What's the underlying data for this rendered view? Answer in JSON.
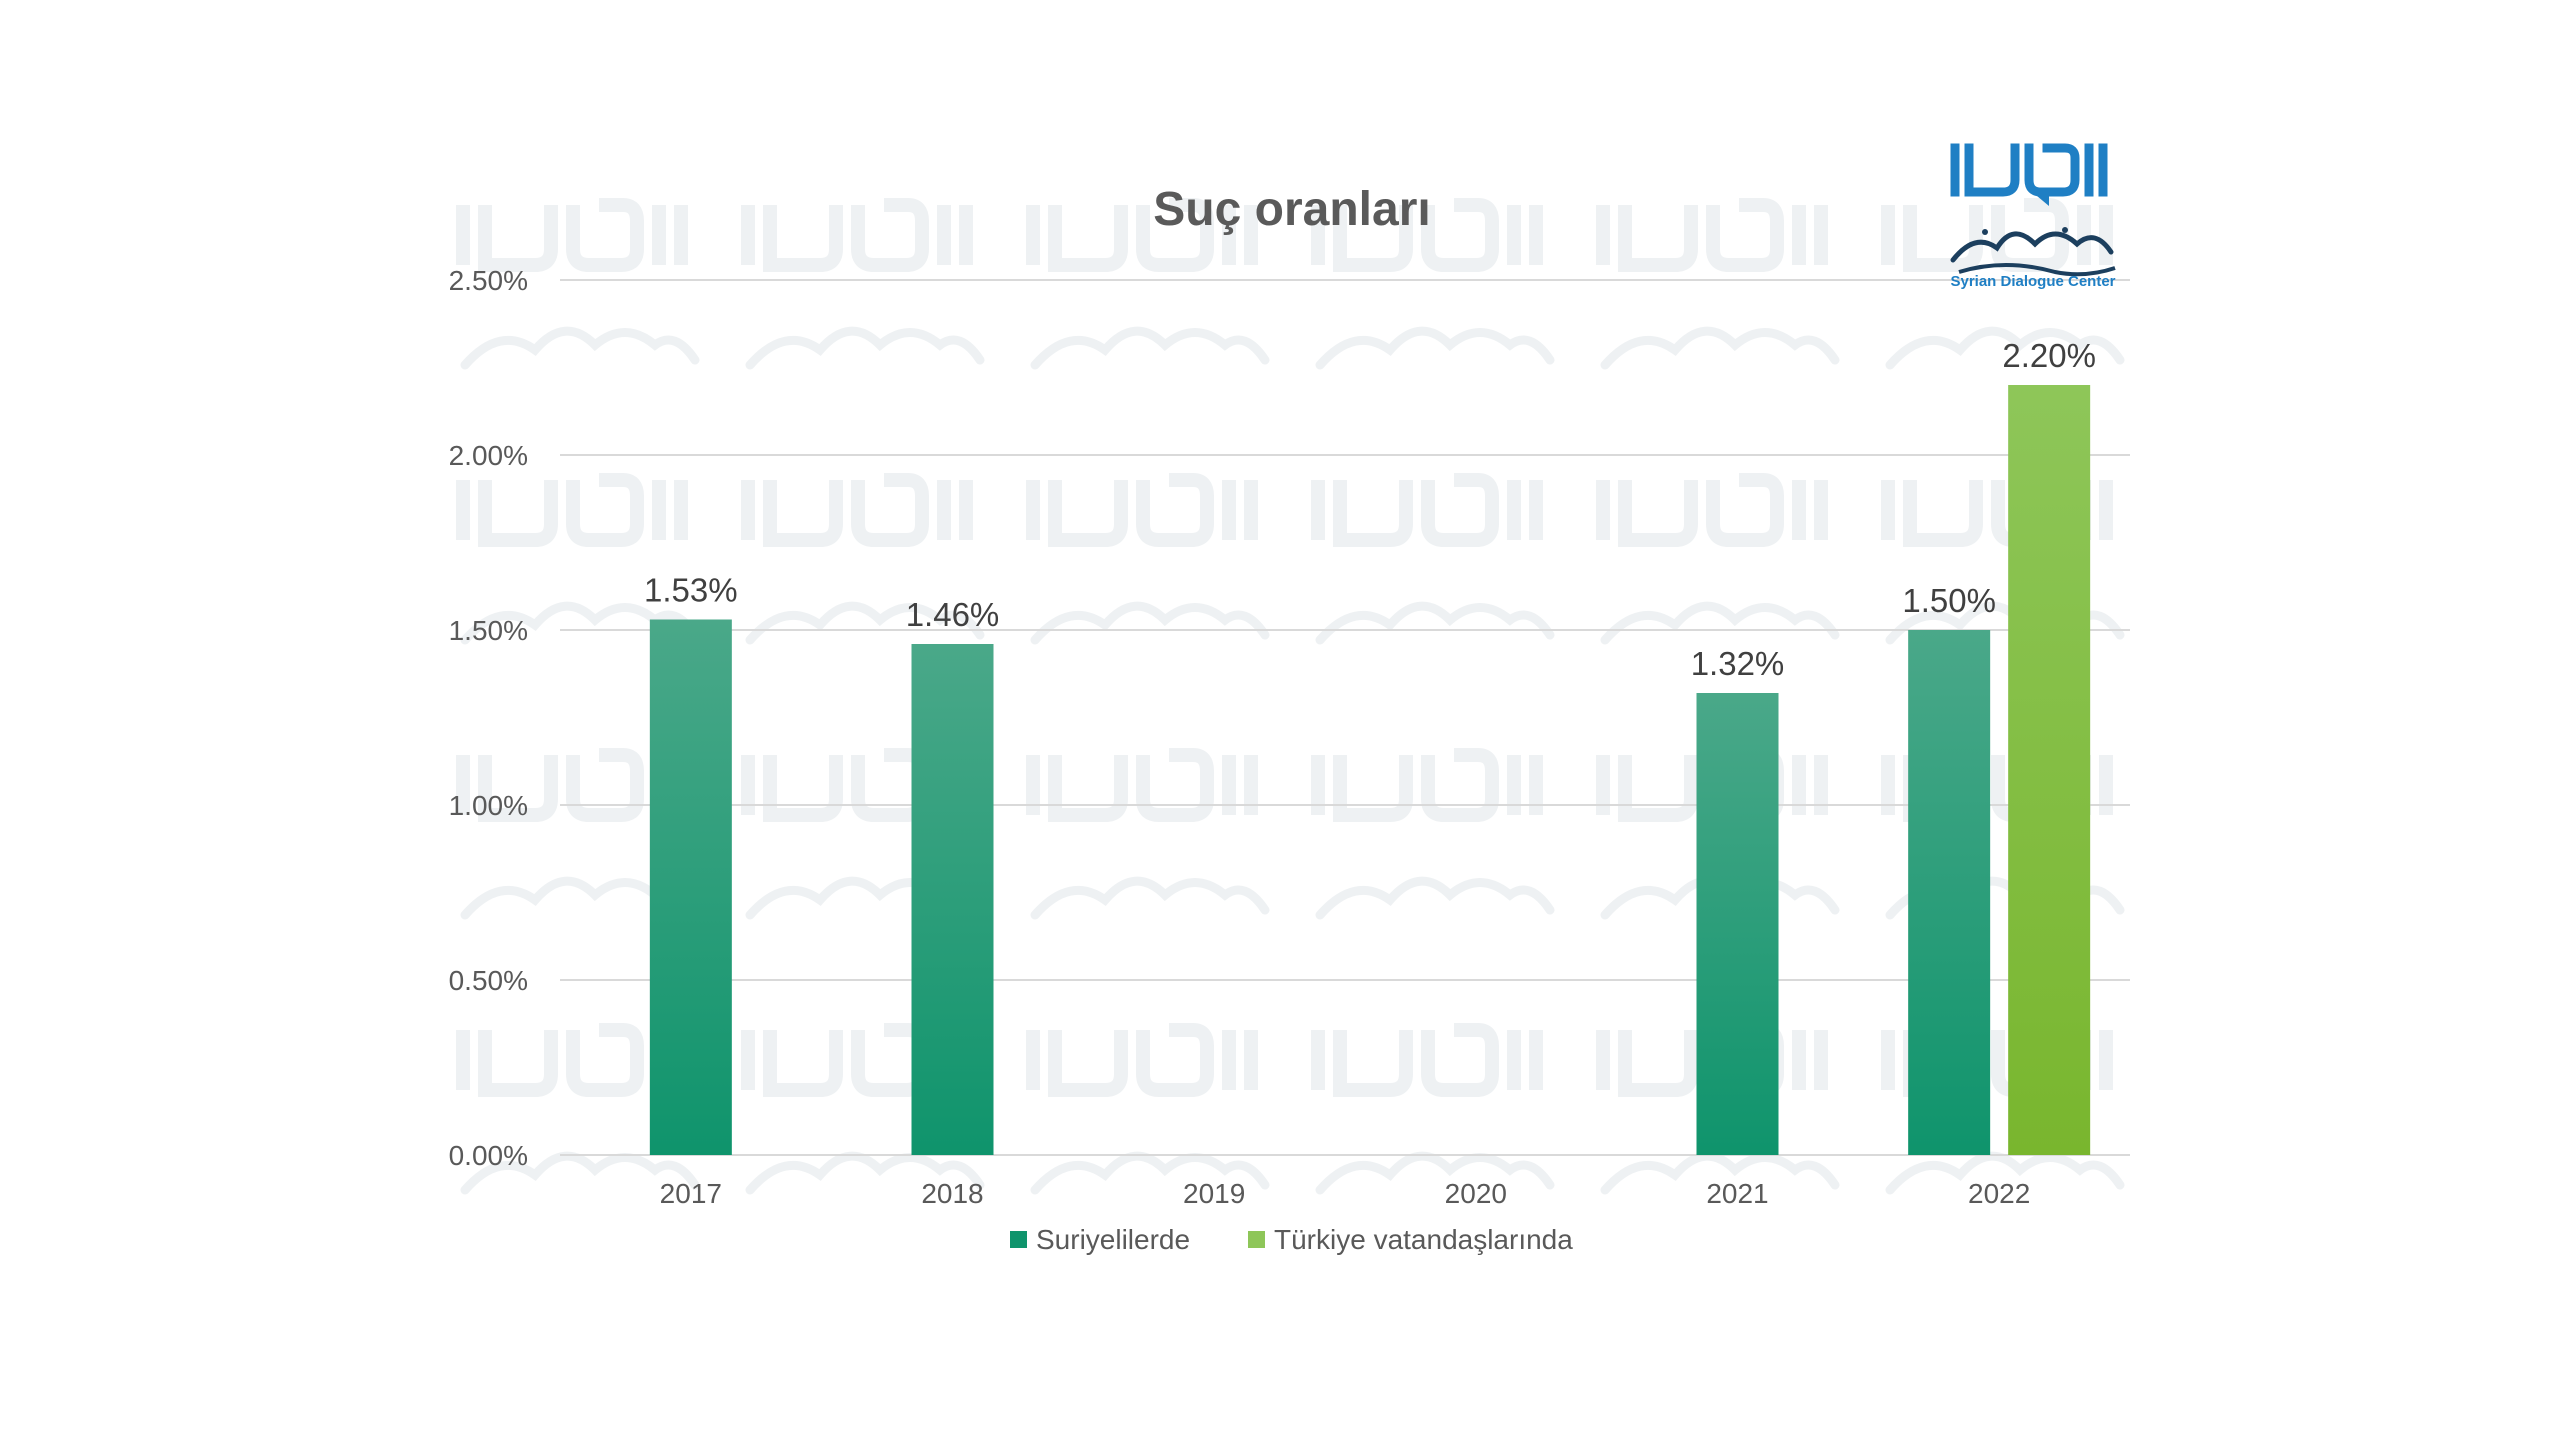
{
  "chart_data": {
    "type": "bar",
    "title": "Suç oranları",
    "categories": [
      "2017",
      "2018",
      "2019",
      "2020",
      "2021",
      "2022"
    ],
    "series": [
      {
        "name": "Suriyelilerde",
        "values": [
          1.53,
          1.46,
          null,
          null,
          1.32,
          1.5
        ],
        "labels": [
          "1.53%",
          "1.46%",
          "",
          "",
          "1.32%",
          "1.50%"
        ],
        "color_top": "#4aa889",
        "color_bottom": "#0f946c"
      },
      {
        "name": "Türkiye vatandaşlarında",
        "values": [
          null,
          null,
          null,
          null,
          null,
          2.2
        ],
        "labels": [
          "",
          "",
          "",
          "",
          "",
          "2.20%"
        ],
        "color_top": "#8ec659",
        "color_bottom": "#79b62e"
      }
    ],
    "ylim": [
      0,
      2.5
    ],
    "yticks": [
      0,
      0.5,
      1.0,
      1.5,
      2.0,
      2.5
    ],
    "ytick_labels": [
      "0.00%",
      "0.50%",
      "1.00%",
      "1.50%",
      "2.00%",
      "2.50%"
    ],
    "grid": true,
    "legend_position": "bottom"
  },
  "logo": {
    "name": "Syrian Dialogue Center",
    "icon": "syrian-dialogue-center-logo",
    "color": "#1f7fc4"
  }
}
